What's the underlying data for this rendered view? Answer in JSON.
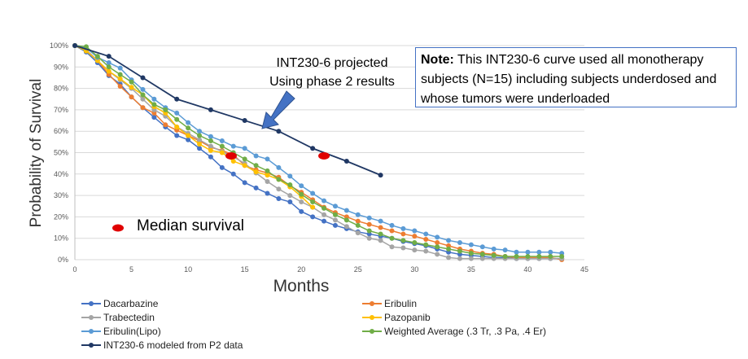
{
  "chart_data": {
    "type": "line",
    "title": "",
    "xlabel": "Months",
    "ylabel": "Probability of Survival",
    "xlim": [
      0,
      45
    ],
    "ylim": [
      0,
      100
    ],
    "xticks": [
      0,
      5,
      10,
      15,
      20,
      25,
      30,
      35,
      40,
      45
    ],
    "yticks": [
      "0%",
      "10%",
      "20%",
      "30%",
      "40%",
      "50%",
      "60%",
      "70%",
      "80%",
      "90%",
      "100%"
    ],
    "grid": "horizontal",
    "legend_position": "bottom",
    "series": [
      {
        "name": "Dacarbazine",
        "color": "#4472C4",
        "x": [
          0,
          1,
          2,
          3,
          4,
          5,
          6,
          7,
          8,
          9,
          10,
          11,
          12,
          13,
          14,
          15,
          16,
          17,
          18,
          19,
          20,
          21,
          22,
          23,
          24,
          25,
          26,
          27,
          28,
          29,
          30,
          31,
          32,
          33,
          34,
          35,
          36,
          37,
          38,
          39,
          40,
          41,
          42,
          43
        ],
        "y": [
          100,
          97,
          92,
          86,
          82,
          76,
          71,
          66.5,
          62,
          58,
          56,
          52,
          48,
          43,
          40,
          36,
          33.5,
          31,
          28.5,
          27,
          22.5,
          20,
          18,
          16,
          14.5,
          13,
          12,
          11,
          10,
          8.5,
          7.5,
          6.5,
          5,
          3.5,
          2.5,
          2,
          1.5,
          1,
          1,
          0.5,
          0.5,
          0.5,
          0.5,
          0.5
        ]
      },
      {
        "name": "Eribulin",
        "color": "#ED7D31",
        "x": [
          0,
          1,
          2,
          3,
          4,
          5,
          6,
          7,
          8,
          9,
          10,
          11,
          12,
          13,
          14,
          15,
          16,
          17,
          18,
          19,
          20,
          21,
          22,
          23,
          24,
          25,
          26,
          27,
          28,
          29,
          30,
          31,
          32,
          33,
          34,
          35,
          36,
          37,
          38,
          39,
          40,
          41,
          42,
          43
        ],
        "y": [
          100,
          98,
          93,
          86.5,
          81,
          76,
          71,
          68.5,
          63,
          60.5,
          58,
          55.5,
          52.5,
          51,
          49,
          44,
          42,
          40.5,
          38.5,
          34.5,
          31.5,
          28,
          24.5,
          22,
          20,
          18,
          16.5,
          15,
          13.5,
          12,
          11,
          9.5,
          8,
          6.5,
          5,
          4,
          3,
          2.5,
          1.5,
          1,
          1,
          1,
          1,
          0
        ]
      },
      {
        "name": "Trabectedin",
        "color": "#A5A5A5",
        "x": [
          0,
          1,
          2,
          3,
          4,
          5,
          6,
          7,
          8,
          9,
          10,
          11,
          12,
          13,
          14,
          15,
          16,
          17,
          18,
          19,
          20,
          21,
          22,
          23,
          24,
          25,
          26,
          27,
          28,
          29,
          30,
          31,
          32,
          33,
          34,
          35,
          36,
          37,
          38,
          39,
          40,
          41,
          42,
          43
        ],
        "y": [
          100,
          98,
          93,
          88,
          84,
          80,
          75,
          70,
          67,
          62,
          59,
          56,
          53,
          50.5,
          48,
          45,
          40.5,
          36.5,
          33,
          30,
          27,
          24.5,
          21,
          18.5,
          15.5,
          12.5,
          10,
          9,
          6,
          5.5,
          4.5,
          4,
          2.5,
          1,
          0.5,
          0.5,
          0.5,
          0.5,
          0.5,
          0.5,
          0.5,
          0.5,
          0.5,
          0.5
        ]
      },
      {
        "name": "Pazopanib",
        "color": "#FFC000",
        "x": [
          0,
          1,
          2,
          3,
          4,
          5,
          6,
          7,
          8,
          9,
          10,
          11,
          12,
          13,
          14,
          15,
          16,
          17,
          18,
          19,
          20,
          21
        ],
        "y": [
          100,
          97.5,
          93,
          88,
          84.5,
          80.5,
          77,
          71.5,
          68.5,
          62,
          58,
          54,
          51,
          50,
          46,
          44,
          41,
          39.5,
          37.5,
          34,
          29.5,
          24.5
        ]
      },
      {
        "name": "Eribulin(Lipo)",
        "color": "#5B9BD5",
        "x": [
          0,
          1,
          2,
          3,
          4,
          5,
          6,
          7,
          8,
          9,
          10,
          11,
          12,
          13,
          14,
          15,
          16,
          17,
          18,
          19,
          20,
          21,
          22,
          23,
          24,
          25,
          26,
          27,
          28,
          29,
          30,
          31,
          32,
          33,
          34,
          35,
          36,
          37,
          38,
          39,
          40,
          41,
          42,
          43
        ],
        "y": [
          100,
          99,
          94.5,
          92,
          89.5,
          84,
          79.5,
          75,
          71,
          68.5,
          64,
          60,
          57.5,
          55.5,
          53,
          52,
          48.5,
          47,
          43,
          39,
          34.5,
          31,
          27.5,
          25,
          23,
          21,
          19.5,
          18,
          16,
          14.5,
          13.5,
          12,
          10.5,
          9,
          8,
          7,
          6,
          5,
          4.5,
          3.5,
          3.5,
          3.5,
          3.5,
          3
        ]
      },
      {
        "name": "Weighted Average (.3 Tr, .3 Pa, .4 Er)",
        "color": "#70AD47",
        "x": [
          0,
          1,
          2,
          3,
          4,
          5,
          6,
          7,
          8,
          9,
          10,
          11,
          12,
          13,
          14,
          15,
          16,
          17,
          18,
          19,
          20,
          21,
          22,
          23,
          24,
          25,
          26,
          27,
          28,
          29,
          30,
          31,
          32,
          33,
          34,
          35,
          36,
          37,
          38,
          39,
          40,
          41,
          42,
          43
        ],
        "y": [
          100,
          99.5,
          95,
          90,
          86.5,
          83,
          77,
          72.5,
          70,
          65.5,
          61.5,
          58,
          55.5,
          53,
          50,
          47,
          44,
          41.5,
          37.5,
          35,
          30.5,
          27,
          24,
          21,
          18.5,
          16,
          13.5,
          12,
          10,
          9,
          8,
          7,
          6,
          5,
          4,
          3,
          2.5,
          2,
          1.5,
          1.5,
          1.5,
          1.5,
          1.5,
          1.5
        ]
      },
      {
        "name": "INT230-6 modeled from P2 data",
        "color": "#203864",
        "x": [
          0,
          3,
          6,
          9,
          12,
          15,
          18,
          21,
          24,
          27
        ],
        "y": [
          100,
          95,
          85,
          75,
          70,
          65,
          60,
          52,
          46,
          39.5
        ]
      }
    ],
    "median_markers": {
      "label": "Median survival",
      "color": "#E00000",
      "points": [
        [
          13.8,
          48.5
        ],
        [
          22,
          48.5
        ]
      ]
    },
    "annotations": {
      "projected_line1": "INT230-6 projected",
      "projected_line2": "Using phase 2 results",
      "arrow_color": "#4472C4"
    }
  },
  "note": {
    "bold": "Note:",
    "text": " This INT230-6 curve used all monotherapy subjects (N=15) including subjects underdosed and whose tumors were underloaded"
  }
}
